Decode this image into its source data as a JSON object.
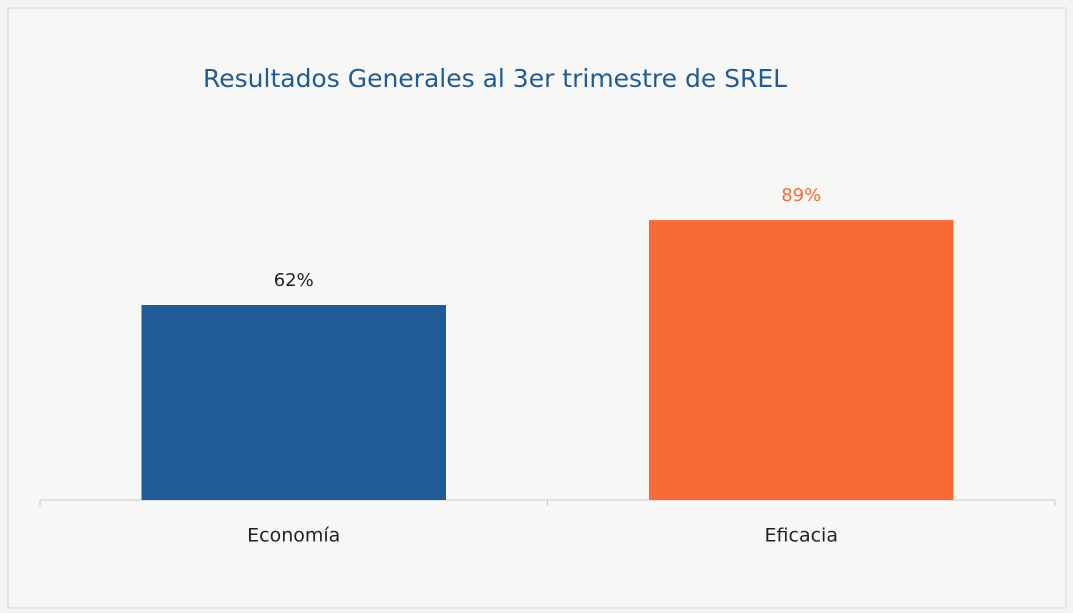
{
  "chart_data": {
    "type": "bar",
    "title": "Resultados Generales al 3er trimestre de SREL",
    "categories": [
      "Economía",
      "Eficacia"
    ],
    "values": [
      62,
      89
    ],
    "value_labels": [
      "62%",
      "89%"
    ],
    "colors": [
      "#1f5b94",
      "#fa6a35"
    ],
    "ylim": [
      0,
      100
    ],
    "grid": false
  }
}
